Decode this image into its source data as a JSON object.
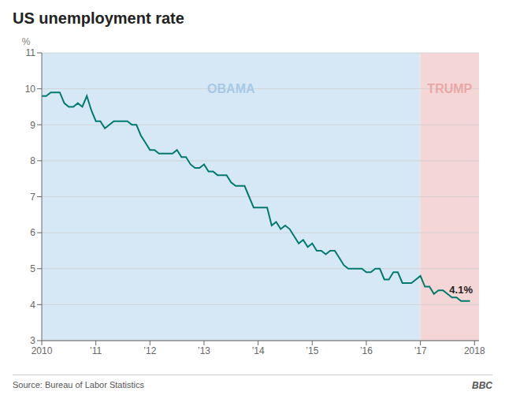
{
  "chart_data": {
    "type": "line",
    "title": "US unemployment rate",
    "y_label": "%",
    "source": "Source: Bureau of Labor Statistics",
    "credit": "BBC",
    "color": "#007a6e",
    "grid": true,
    "xlim": [
      2010.0,
      2018.083
    ],
    "xticks": [
      2010,
      {
        "value": 2011,
        "label": "’11"
      },
      {
        "value": 2012,
        "label": "’12"
      },
      {
        "value": 2013,
        "label": "’13"
      },
      {
        "value": 2014,
        "label": "’14"
      },
      {
        "value": 2015,
        "label": "’15"
      },
      {
        "value": 2016,
        "label": "’16"
      },
      {
        "value": 2017,
        "label": "’17"
      },
      2018
    ],
    "ylim": [
      3,
      11
    ],
    "yticks": [
      3,
      4,
      5,
      6,
      7,
      8,
      9,
      10,
      11
    ],
    "regions": [
      {
        "label": "OBAMA",
        "start": 2010.0,
        "end": 2017.0,
        "color": "#d6e8f5",
        "label_color": "#a8c8e8"
      },
      {
        "label": "TRUMP",
        "start": 2017.0,
        "end": 2018.083,
        "color": "#f5d6d6",
        "label_color": "#e8a8a8"
      }
    ],
    "annotations": [
      {
        "text": "4.1%",
        "x": 2017.75,
        "y": 4.1
      }
    ],
    "x": [
      2010.0,
      2010.083,
      2010.167,
      2010.25,
      2010.333,
      2010.417,
      2010.5,
      2010.583,
      2010.667,
      2010.75,
      2010.833,
      2010.917,
      2011.0,
      2011.083,
      2011.167,
      2011.25,
      2011.333,
      2011.417,
      2011.5,
      2011.583,
      2011.667,
      2011.75,
      2011.833,
      2011.917,
      2012.0,
      2012.083,
      2012.167,
      2012.25,
      2012.333,
      2012.417,
      2012.5,
      2012.583,
      2012.667,
      2012.75,
      2012.833,
      2012.917,
      2013.0,
      2013.083,
      2013.167,
      2013.25,
      2013.333,
      2013.417,
      2013.5,
      2013.583,
      2013.667,
      2013.75,
      2013.833,
      2013.917,
      2014.0,
      2014.083,
      2014.167,
      2014.25,
      2014.333,
      2014.417,
      2014.5,
      2014.583,
      2014.667,
      2014.75,
      2014.833,
      2014.917,
      2015.0,
      2015.083,
      2015.167,
      2015.25,
      2015.333,
      2015.417,
      2015.5,
      2015.583,
      2015.667,
      2015.75,
      2015.833,
      2015.917,
      2016.0,
      2016.083,
      2016.167,
      2016.25,
      2016.333,
      2016.417,
      2016.5,
      2016.583,
      2016.667,
      2016.75,
      2016.833,
      2016.917,
      2017.0,
      2017.083,
      2017.167,
      2017.25,
      2017.333,
      2017.417,
      2017.5,
      2017.583,
      2017.667,
      2017.75,
      2017.833,
      2017.917
    ],
    "values": [
      9.8,
      9.8,
      9.9,
      9.9,
      9.9,
      9.6,
      9.5,
      9.5,
      9.6,
      9.5,
      9.8,
      9.4,
      9.1,
      9.1,
      8.9,
      9.0,
      9.1,
      9.1,
      9.1,
      9.1,
      9.0,
      9.0,
      8.7,
      8.5,
      8.3,
      8.3,
      8.2,
      8.2,
      8.2,
      8.2,
      8.3,
      8.1,
      8.1,
      7.9,
      7.8,
      7.8,
      7.9,
      7.7,
      7.7,
      7.6,
      7.6,
      7.6,
      7.4,
      7.3,
      7.3,
      7.3,
      7.0,
      6.7,
      6.7,
      6.7,
      6.7,
      6.2,
      6.3,
      6.1,
      6.2,
      6.1,
      5.9,
      5.7,
      5.8,
      5.6,
      5.7,
      5.5,
      5.5,
      5.4,
      5.5,
      5.5,
      5.3,
      5.1,
      5.0,
      5.0,
      5.0,
      5.0,
      4.9,
      4.9,
      5.0,
      5.0,
      4.7,
      4.7,
      4.9,
      4.9,
      4.6,
      4.6,
      4.6,
      4.7,
      4.8,
      4.5,
      4.5,
      4.3,
      4.4,
      4.4,
      4.3,
      4.2,
      4.2,
      4.1,
      4.1,
      4.1
    ]
  }
}
